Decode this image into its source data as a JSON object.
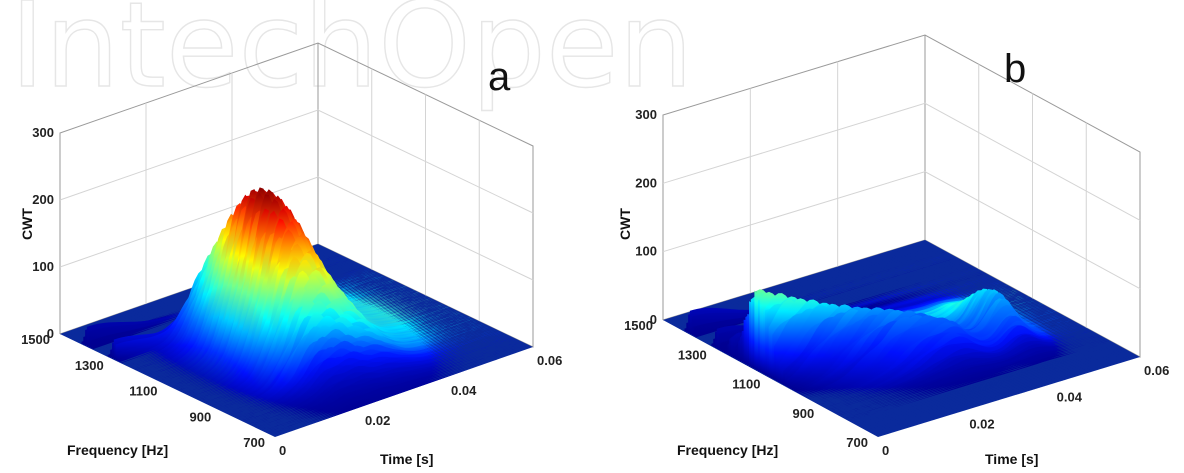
{
  "colors": {
    "surface_base": "#0a2a9c",
    "colormap": [
      "#00008f",
      "#0010ff",
      "#0080ff",
      "#00ffff",
      "#80ff80",
      "#ffff00",
      "#ff8000",
      "#ff0000",
      "#800000"
    ]
  },
  "chart_data": [
    {
      "type": "surface3d",
      "panel_label": "a",
      "zlabel": "CWT",
      "xlabel": "Frequency [Hz]",
      "ylabel": "Time [s]",
      "z_ticks": [
        "0",
        "100",
        "200",
        "300"
      ],
      "freq_ticks": [
        "1500",
        "1300",
        "1100",
        "900",
        "700"
      ],
      "time_ticks": [
        "0",
        "0.02",
        "0.04",
        "0.06"
      ],
      "zlim": [
        0,
        300
      ],
      "freq_range": [
        700,
        1500
      ],
      "time_range": [
        0,
        0.06
      ],
      "grid": true,
      "shape": "single broad ridge",
      "peak": {
        "freq": 1100,
        "time": 0.022,
        "value": 245
      },
      "freq_spread": 210,
      "time_spread": 0.012,
      "low_ripples": [
        {
          "freq": 1400,
          "value": 30
        },
        {
          "freq": 1300,
          "value": 30
        }
      ]
    },
    {
      "type": "surface3d",
      "panel_label": "b",
      "zlabel": "CWT",
      "xlabel": "Frequency [Hz]",
      "ylabel": "Time [s]",
      "z_ticks": [
        "0",
        "100",
        "200",
        "300"
      ],
      "freq_ticks": [
        "1500",
        "1300",
        "1100",
        "900",
        "700"
      ],
      "time_ticks": [
        "0",
        "0.02",
        "0.04",
        "0.06"
      ],
      "zlim": [
        0,
        300
      ],
      "freq_range": [
        700,
        1500
      ],
      "time_range": [
        0,
        0.06
      ],
      "grid": true,
      "shape": "diagonal ridge",
      "ridge_start": {
        "freq": 1150,
        "time": 0.0,
        "value": 115
      },
      "ridge_end": {
        "freq": 950,
        "time": 0.03,
        "value": 45
      },
      "ridge_peak_value": 122,
      "late_hump": {
        "freq": 1000,
        "time": 0.045,
        "value": 60
      },
      "low_ripples": [
        {
          "freq": 1400,
          "value": 35
        },
        {
          "freq": 1300,
          "value": 30
        },
        {
          "freq": 1250,
          "value": 25
        }
      ]
    }
  ]
}
